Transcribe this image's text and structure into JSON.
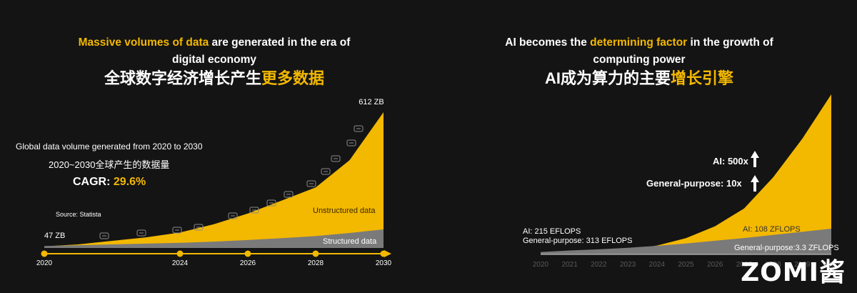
{
  "left": {
    "title_hl": "Massive volumes of data",
    "title_rest": " are generated in the era of",
    "title_line2": "digital economy",
    "cn_title_main": "全球数字经济增长产生",
    "cn_title_hl": "更多数据",
    "desc_line1": "Global data volume generated from 2020 to 2030",
    "desc_line2": "2020~2030全球产生的数据量",
    "cagr_label": "CAGR: ",
    "cagr_value": "29.6%",
    "source": "Source: Statista",
    "start_label": "47 ZB",
    "end_label": "612 ZB",
    "unstructured_label": "Unstructured data",
    "structured_label": "Structured data"
  },
  "right": {
    "title_pre": "AI becomes the ",
    "title_hl": "determining factor",
    "title_rest": " in the growth of",
    "title_line2": "computing power",
    "cn_title_main": "AI成为算力的主要",
    "cn_title_hl": "增长引擎",
    "ai_growth": "AI: 500x",
    "gp_growth": "General-purpose: 10x",
    "start_ai": "AI: 215 EFLOPS",
    "start_gp": "General-purpose: 313 EFLOPS",
    "end_ai": "AI: 108 ZFLOPS",
    "end_gp": "General-purpose:3.3 ZFLOPS"
  },
  "brand": "ZOMI酱",
  "colors": {
    "accent": "#f3b800",
    "structured": "#7a7a7a",
    "background": "#141414"
  },
  "chart_data": [
    {
      "type": "area",
      "title": "Global data volume generated from 2020 to 2030",
      "x": [
        2020,
        2021,
        2022,
        2023,
        2024,
        2025,
        2026,
        2027,
        2028,
        2029,
        2030
      ],
      "tick_labels": [
        "2020",
        "2024",
        "2026",
        "2028",
        "2030"
      ],
      "ylim": [
        0,
        650
      ],
      "series": [
        {
          "name": "Unstructured data",
          "values": [
            47,
            55,
            70,
            85,
            105,
            140,
            185,
            240,
            295,
            410,
            612
          ]
        },
        {
          "name": "Structured data",
          "values": [
            5,
            7,
            9,
            11,
            13,
            16,
            20,
            25,
            30,
            38,
            47
          ]
        }
      ],
      "annotations": [
        "47 ZB",
        "612 ZB",
        "CAGR: 29.6%"
      ],
      "icons": [
        "chat-icon",
        "cash-icon",
        "cart-icon",
        "tablet-icon",
        "message-icon",
        "film-icon",
        "music-icon",
        "vr-icon",
        "drone-icon",
        "robot-icon",
        "helmet-icon",
        "satellite-icon",
        "car-icon"
      ]
    },
    {
      "type": "area",
      "title": "",
      "x": [
        2020,
        2021,
        2022,
        2023,
        2024,
        2025,
        2026,
        2027,
        2028,
        2029,
        2030
      ],
      "tick_labels": [
        "2020",
        "2021",
        "2022",
        "2023",
        "2024",
        "2025",
        "2026",
        "2027",
        "2028",
        "2029",
        "2030"
      ],
      "ylim": [
        0,
        110
      ],
      "series": [
        {
          "name": "AI",
          "values": [
            0.215,
            0.6,
            1.4,
            3,
            6,
            11,
            19,
            31,
            52,
            78,
            108
          ]
        },
        {
          "name": "General-purpose",
          "values": [
            0.313,
            0.5,
            0.65,
            0.85,
            1.1,
            1.4,
            1.75,
            2.1,
            2.5,
            2.9,
            3.3
          ]
        }
      ],
      "annotations": [
        "AI: 500x",
        "General-purpose: 10x",
        "AI: 215 EFLOPS",
        "General-purpose: 313 EFLOPS",
        "AI: 108 ZFLOPS",
        "General-purpose:3.3 ZFLOPS"
      ]
    }
  ]
}
